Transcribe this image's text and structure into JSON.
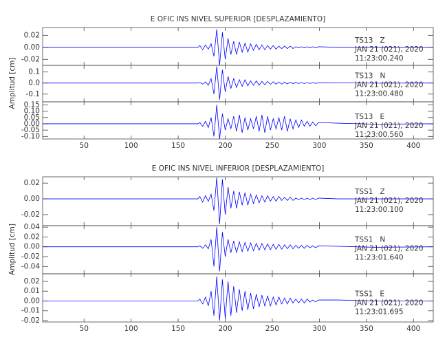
{
  "chart_data": [
    {
      "type": "line",
      "title": "E OFIC INS NIVEL SUPERIOR [DESPLAZAMIENTO]",
      "ylabel": "Amplitud [cm]",
      "xlim": [
        6,
        421
      ],
      "xticks": [
        50,
        100,
        150,
        200,
        250,
        300,
        350,
        400
      ],
      "x": [
        6,
        171,
        173,
        176,
        179,
        182,
        185,
        188,
        191,
        194,
        197,
        200,
        203,
        206,
        209,
        212,
        215,
        218,
        221,
        224,
        227,
        230,
        233,
        236,
        239,
        242,
        245,
        248,
        251,
        254,
        257,
        260,
        263,
        266,
        269,
        272,
        275,
        278,
        281,
        284,
        287,
        290,
        293,
        296,
        299,
        320,
        360,
        421
      ],
      "panels": [
        {
          "label": "TS13   Z",
          "date": "JAN 21 (021), 2020",
          "time": "11:23:00.240",
          "color": "#0000ff",
          "ylim": [
            -0.03,
            0.033
          ],
          "yticks": [
            0.02,
            {
              "value": 0,
              "label": "0.00"
            },
            -0.02
          ],
          "values": [
            0,
            0,
            0.003,
            -0.004,
            0.004,
            -0.003,
            0.006,
            -0.015,
            0.03,
            -0.03,
            0.025,
            -0.02,
            0.015,
            -0.012,
            0.01,
            -0.012,
            0.009,
            -0.008,
            0.007,
            -0.008,
            0.006,
            -0.005,
            0.005,
            -0.004,
            0.004,
            -0.004,
            0.003,
            -0.003,
            0.003,
            -0.003,
            0.002,
            -0.002,
            0.002,
            -0.002,
            0.002,
            -0.002,
            0.001,
            -0.001,
            0.001,
            -0.001,
            0.001,
            -0.001,
            0.001,
            -0.001,
            0.001,
            0,
            0,
            0
          ]
        },
        {
          "label": "TS13   N",
          "date": "JAN 21 (021), 2020",
          "time": "11:23:00.480",
          "color": "#0000ff",
          "ylim": [
            -0.17,
            0.16
          ],
          "yticks": [
            0.1,
            {
              "value": 0,
              "label": "0.0"
            },
            -0.1
          ],
          "values": [
            0,
            0,
            0.005,
            -0.01,
            0.01,
            -0.02,
            0.04,
            -0.1,
            0.15,
            -0.15,
            0.12,
            -0.08,
            0.06,
            -0.05,
            0.04,
            -0.04,
            0.03,
            -0.03,
            0.03,
            -0.025,
            0.02,
            -0.02,
            0.02,
            -0.02,
            0.015,
            -0.015,
            0.015,
            -0.012,
            0.012,
            -0.01,
            0.01,
            -0.01,
            0.008,
            -0.008,
            0.008,
            -0.006,
            0.006,
            -0.005,
            0.005,
            -0.005,
            0.004,
            -0.004,
            0.004,
            -0.003,
            0.003,
            0.002,
            -0.001,
            0
          ]
        },
        {
          "label": "TS13   E",
          "date": "JAN 21 (021), 2020",
          "time": "11:23:00.560",
          "color": "#0000ff",
          "ylim": [
            -0.12,
            0.174
          ],
          "yticks": [
            0.15,
            {
              "value": 0.1,
              "label": "0.10"
            },
            0.05,
            {
              "value": 0,
              "label": "0.00"
            },
            -0.05,
            {
              "value": -0.1,
              "label": "-0.10"
            }
          ],
          "values": [
            0,
            0,
            0.01,
            -0.02,
            0.02,
            -0.03,
            0.05,
            -0.1,
            0.15,
            -0.12,
            0.08,
            -0.05,
            0.04,
            -0.04,
            0.06,
            -0.06,
            0.07,
            -0.07,
            0.05,
            -0.05,
            0.04,
            -0.04,
            0.06,
            -0.06,
            0.07,
            -0.07,
            0.06,
            -0.05,
            0.04,
            -0.04,
            0.05,
            -0.05,
            0.06,
            -0.06,
            0.04,
            -0.04,
            0.03,
            -0.03,
            0.03,
            -0.02,
            0.02,
            -0.02,
            0.015,
            -0.015,
            0.01,
            0.005,
            -0.003,
            0
          ]
        }
      ]
    },
    {
      "type": "line",
      "title": "E OFIC INS NIVEL INFERIOR [DESPLAZAMIENTO]",
      "ylabel": "Amplitud [cm]",
      "xlim": [
        6,
        421
      ],
      "xticks": [
        50,
        100,
        150,
        200,
        250,
        300,
        350,
        400
      ],
      "x": [
        6,
        171,
        173,
        176,
        179,
        182,
        185,
        188,
        191,
        194,
        197,
        200,
        203,
        206,
        209,
        212,
        215,
        218,
        221,
        224,
        227,
        230,
        233,
        236,
        239,
        242,
        245,
        248,
        251,
        254,
        257,
        260,
        263,
        266,
        269,
        272,
        275,
        278,
        281,
        284,
        287,
        290,
        293,
        296,
        299,
        320,
        360,
        421
      ],
      "panels": [
        {
          "label": "TSS1   Z",
          "date": "JAN 21 (021), 2020",
          "time": "11:23:00.100",
          "color": "#0000ff",
          "ylim": [
            -0.034,
            0.028
          ],
          "yticks": [
            0.02,
            {
              "value": 0,
              "label": "0.00"
            },
            -0.02
          ],
          "values": [
            0,
            0,
            0.003,
            -0.004,
            0.004,
            -0.003,
            0.006,
            -0.015,
            0.027,
            -0.032,
            0.025,
            -0.02,
            0.015,
            -0.012,
            0.01,
            -0.012,
            0.009,
            -0.008,
            0.008,
            -0.008,
            0.006,
            -0.006,
            0.005,
            -0.005,
            0.004,
            -0.004,
            0.004,
            -0.003,
            0.003,
            -0.003,
            0.003,
            -0.002,
            0.002,
            -0.002,
            0.002,
            -0.002,
            0.001,
            -0.001,
            0.001,
            -0.001,
            0.001,
            -0.001,
            0.001,
            -0.001,
            0.001,
            0,
            0,
            0
          ]
        },
        {
          "label": "TSS1   N",
          "date": "JAN 21 (021), 2020",
          "time": "11:23:01.640",
          "color": "#0000ff",
          "ylim": [
            -0.055,
            0.043
          ],
          "yticks": [
            0.04,
            0.02,
            {
              "value": 0,
              "label": "0.00"
            },
            -0.02,
            -0.04
          ],
          "values": [
            0,
            0,
            0.002,
            -0.003,
            0.004,
            -0.004,
            0.015,
            -0.04,
            0.04,
            -0.05,
            0.03,
            -0.02,
            0.015,
            -0.012,
            0.012,
            -0.012,
            0.01,
            -0.01,
            0.009,
            -0.009,
            0.008,
            -0.008,
            0.007,
            -0.007,
            0.007,
            -0.006,
            0.006,
            -0.006,
            0.005,
            -0.005,
            0.005,
            -0.005,
            0.004,
            -0.004,
            0.004,
            -0.004,
            0.003,
            -0.003,
            0.003,
            -0.003,
            0.003,
            -0.002,
            0.002,
            -0.002,
            0.002,
            0.001,
            -0.001,
            0
          ]
        },
        {
          "label": "TSS1   E",
          "date": "JAN 21 (021), 2020",
          "time": "11:23:01.695",
          "color": "#0000ff",
          "ylim": [
            -0.0214,
            0.0277
          ],
          "yticks": [
            0.02,
            0.01,
            {
              "value": 0,
              "label": "0.00"
            },
            -0.01,
            -0.02
          ],
          "values": [
            0,
            0,
            0.002,
            -0.003,
            0.004,
            -0.005,
            0.01,
            -0.015,
            0.025,
            -0.02,
            0.022,
            -0.018,
            0.02,
            -0.015,
            0.015,
            -0.012,
            0.012,
            -0.01,
            0.01,
            -0.009,
            0.008,
            -0.008,
            0.007,
            -0.006,
            0.006,
            -0.005,
            0.005,
            -0.005,
            0.004,
            -0.004,
            0.004,
            -0.003,
            0.003,
            -0.003,
            0.003,
            -0.002,
            0.002,
            -0.002,
            0.002,
            -0.002,
            0.002,
            -0.001,
            0.001,
            -0.001,
            0.001,
            0.001,
            0,
            0
          ]
        }
      ]
    }
  ]
}
